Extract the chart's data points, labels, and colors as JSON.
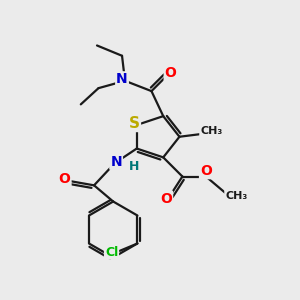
{
  "background_color": "#ebebeb",
  "bond_color": "#1a1a1a",
  "atom_colors": {
    "O": "#ff0000",
    "N": "#0000cc",
    "S": "#bbaa00",
    "Cl": "#00bb00",
    "H": "#007777",
    "C": "#1a1a1a"
  },
  "font_size_atoms": 10,
  "fig_size": [
    3.0,
    3.0
  ],
  "dpi": 100
}
